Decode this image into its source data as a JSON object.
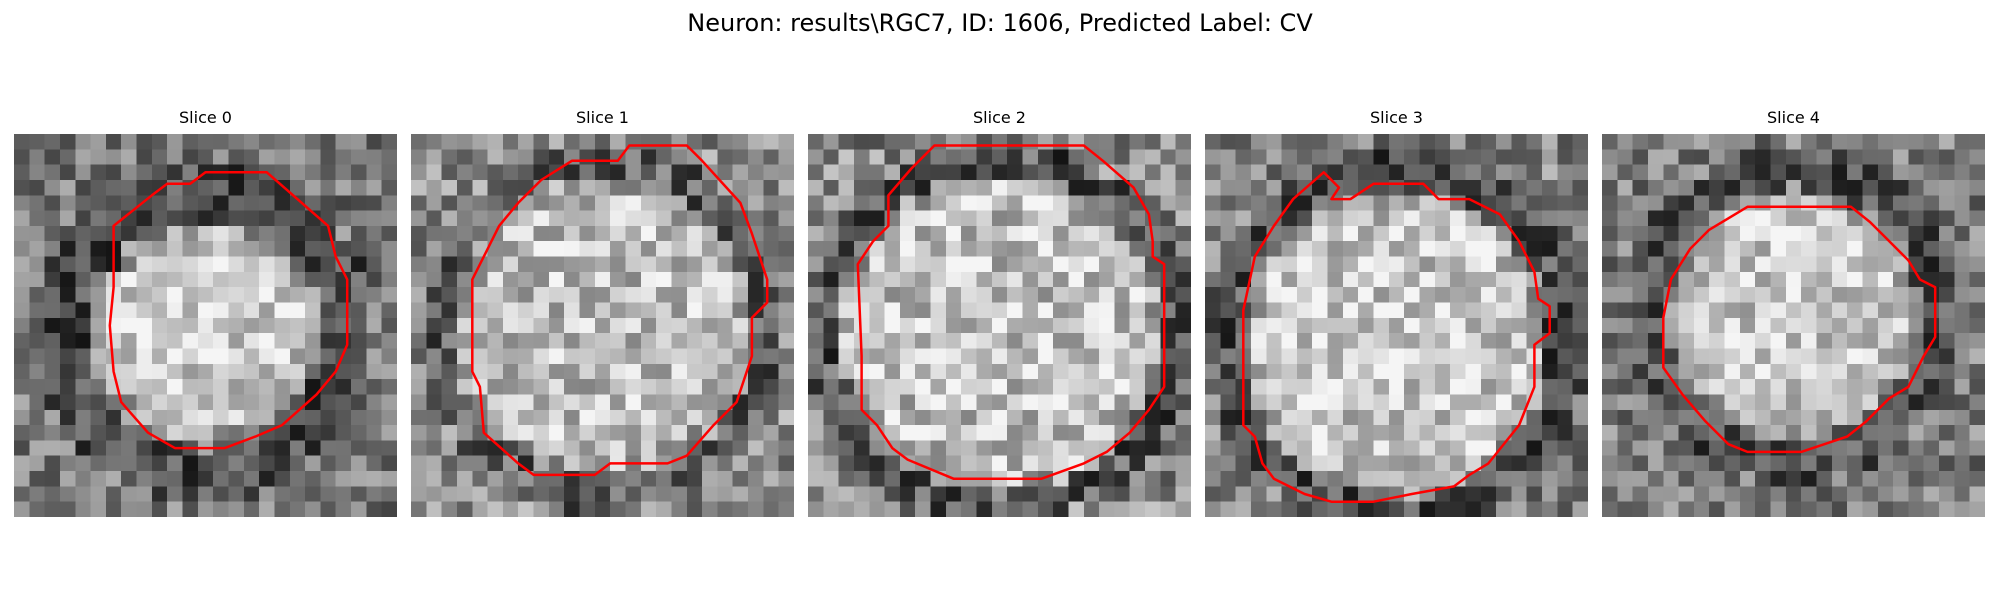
{
  "figure": {
    "title": "Neuron: results\\RGC7, ID: 1606, Predicted Label: CV"
  },
  "colors": {
    "contour": "#ff0000",
    "background": "#ffffff"
  },
  "panels": [
    {
      "title": "Slice 0",
      "image": {
        "grid": 25,
        "mean": 120,
        "dark_ring": {
          "inner": 0.3,
          "outer": 0.44,
          "level": 75
        },
        "bright_core": {
          "radius": 0.24,
          "level": 205
        },
        "center": [
          0.5,
          0.52
        ],
        "noise": 55,
        "seed": 11
      },
      "contour": [
        [
          0.5,
          0.1
        ],
        [
          0.66,
          0.1
        ],
        [
          0.82,
          0.24
        ],
        [
          0.84,
          0.32
        ],
        [
          0.87,
          0.38
        ],
        [
          0.87,
          0.55
        ],
        [
          0.84,
          0.62
        ],
        [
          0.79,
          0.68
        ],
        [
          0.7,
          0.76
        ],
        [
          0.63,
          0.79
        ],
        [
          0.55,
          0.82
        ],
        [
          0.42,
          0.82
        ],
        [
          0.35,
          0.78
        ],
        [
          0.28,
          0.7
        ],
        [
          0.26,
          0.62
        ],
        [
          0.25,
          0.5
        ],
        [
          0.26,
          0.4
        ],
        [
          0.26,
          0.24
        ],
        [
          0.36,
          0.16
        ],
        [
          0.4,
          0.13
        ],
        [
          0.46,
          0.13
        ]
      ]
    },
    {
      "title": "Slice 1",
      "image": {
        "grid": 25,
        "mean": 140,
        "dark_ring": {
          "inner": 0.39,
          "outer": 0.48,
          "level": 95
        },
        "bright_core": {
          "radius": 0.34,
          "level": 190
        },
        "center": [
          0.5,
          0.51
        ],
        "noise": 60,
        "seed": 23
      },
      "contour": [
        [
          0.42,
          0.07
        ],
        [
          0.54,
          0.07
        ],
        [
          0.57,
          0.03
        ],
        [
          0.72,
          0.03
        ],
        [
          0.76,
          0.07
        ],
        [
          0.86,
          0.18
        ],
        [
          0.89,
          0.26
        ],
        [
          0.93,
          0.38
        ],
        [
          0.93,
          0.44
        ],
        [
          0.89,
          0.48
        ],
        [
          0.89,
          0.58
        ],
        [
          0.85,
          0.7
        ],
        [
          0.79,
          0.76
        ],
        [
          0.72,
          0.84
        ],
        [
          0.67,
          0.86
        ],
        [
          0.62,
          0.86
        ],
        [
          0.52,
          0.86
        ],
        [
          0.48,
          0.89
        ],
        [
          0.43,
          0.89
        ],
        [
          0.32,
          0.89
        ],
        [
          0.28,
          0.86
        ],
        [
          0.19,
          0.78
        ],
        [
          0.18,
          0.66
        ],
        [
          0.16,
          0.62
        ],
        [
          0.16,
          0.38
        ],
        [
          0.19,
          0.32
        ],
        [
          0.23,
          0.24
        ],
        [
          0.28,
          0.18
        ],
        [
          0.34,
          0.12
        ]
      ]
    },
    {
      "title": "Slice 2",
      "image": {
        "grid": 25,
        "mean": 135,
        "dark_ring": {
          "inner": 0.42,
          "outer": 0.5,
          "level": 85
        },
        "bright_core": {
          "radius": 0.38,
          "level": 195
        },
        "center": [
          0.5,
          0.52
        ],
        "noise": 65,
        "seed": 37
      },
      "contour": [
        [
          0.33,
          0.03
        ],
        [
          0.72,
          0.03
        ],
        [
          0.77,
          0.07
        ],
        [
          0.85,
          0.14
        ],
        [
          0.89,
          0.21
        ],
        [
          0.9,
          0.28
        ],
        [
          0.9,
          0.32
        ],
        [
          0.93,
          0.34
        ],
        [
          0.93,
          0.66
        ],
        [
          0.89,
          0.72
        ],
        [
          0.84,
          0.78
        ],
        [
          0.78,
          0.83
        ],
        [
          0.72,
          0.86
        ],
        [
          0.61,
          0.9
        ],
        [
          0.38,
          0.9
        ],
        [
          0.26,
          0.85
        ],
        [
          0.22,
          0.82
        ],
        [
          0.18,
          0.76
        ],
        [
          0.14,
          0.72
        ],
        [
          0.14,
          0.58
        ],
        [
          0.13,
          0.34
        ],
        [
          0.17,
          0.28
        ],
        [
          0.21,
          0.24
        ],
        [
          0.21,
          0.16
        ],
        [
          0.27,
          0.09
        ]
      ]
    },
    {
      "title": "Slice 3",
      "image": {
        "grid": 25,
        "mean": 130,
        "dark_ring": {
          "inner": 0.4,
          "outer": 0.5,
          "level": 80
        },
        "bright_core": {
          "radius": 0.36,
          "level": 200
        },
        "center": [
          0.5,
          0.55
        ],
        "noise": 60,
        "seed": 53
      },
      "contour": [
        [
          0.31,
          0.1
        ],
        [
          0.35,
          0.14
        ],
        [
          0.33,
          0.17
        ],
        [
          0.38,
          0.17
        ],
        [
          0.44,
          0.13
        ],
        [
          0.57,
          0.13
        ],
        [
          0.61,
          0.17
        ],
        [
          0.69,
          0.17
        ],
        [
          0.77,
          0.21
        ],
        [
          0.82,
          0.28
        ],
        [
          0.86,
          0.36
        ],
        [
          0.87,
          0.43
        ],
        [
          0.9,
          0.45
        ],
        [
          0.9,
          0.52
        ],
        [
          0.86,
          0.55
        ],
        [
          0.86,
          0.66
        ],
        [
          0.82,
          0.76
        ],
        [
          0.74,
          0.86
        ],
        [
          0.69,
          0.89
        ],
        [
          0.65,
          0.92
        ],
        [
          0.54,
          0.94
        ],
        [
          0.44,
          0.96
        ],
        [
          0.33,
          0.96
        ],
        [
          0.26,
          0.94
        ],
        [
          0.18,
          0.9
        ],
        [
          0.15,
          0.86
        ],
        [
          0.13,
          0.79
        ],
        [
          0.1,
          0.76
        ],
        [
          0.1,
          0.46
        ],
        [
          0.13,
          0.32
        ],
        [
          0.18,
          0.24
        ],
        [
          0.23,
          0.17
        ]
      ]
    },
    {
      "title": "Slice 4",
      "image": {
        "grid": 25,
        "mean": 125,
        "dark_ring": {
          "inner": 0.33,
          "outer": 0.44,
          "level": 80
        },
        "bright_core": {
          "radius": 0.28,
          "level": 200
        },
        "center": [
          0.5,
          0.47
        ],
        "noise": 55,
        "seed": 71
      },
      "contour": [
        [
          0.38,
          0.19
        ],
        [
          0.65,
          0.19
        ],
        [
          0.7,
          0.23
        ],
        [
          0.74,
          0.27
        ],
        [
          0.8,
          0.33
        ],
        [
          0.83,
          0.38
        ],
        [
          0.87,
          0.4
        ],
        [
          0.87,
          0.53
        ],
        [
          0.84,
          0.58
        ],
        [
          0.8,
          0.66
        ],
        [
          0.75,
          0.69
        ],
        [
          0.69,
          0.75
        ],
        [
          0.64,
          0.79
        ],
        [
          0.52,
          0.83
        ],
        [
          0.38,
          0.83
        ],
        [
          0.33,
          0.81
        ],
        [
          0.27,
          0.75
        ],
        [
          0.21,
          0.68
        ],
        [
          0.16,
          0.61
        ],
        [
          0.16,
          0.48
        ],
        [
          0.18,
          0.38
        ],
        [
          0.23,
          0.3
        ],
        [
          0.28,
          0.25
        ],
        [
          0.33,
          0.22
        ]
      ]
    }
  ]
}
